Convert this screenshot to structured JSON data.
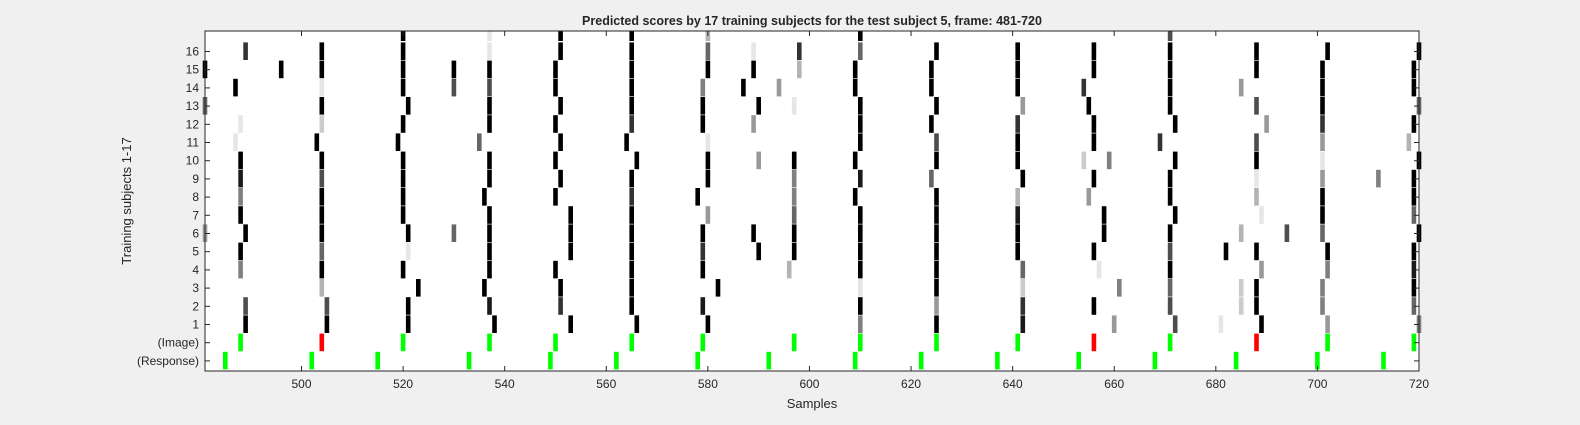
{
  "chart_data": {
    "type": "heatmap",
    "title": "Predicted scores by 17 training subjects for the test subject 5, frame: 481-720",
    "xlabel": "Samples",
    "ylabel": "Training subjects 1-17",
    "xlim": [
      481,
      720
    ],
    "x_ticks": [
      500,
      520,
      540,
      560,
      580,
      600,
      620,
      640,
      660,
      680,
      700,
      720
    ],
    "y_tick_labels": [
      "(Response)",
      "(Image)",
      "1",
      "2",
      "3",
      "4",
      "5",
      "6",
      "7",
      "8",
      "9",
      "10",
      "11",
      "12",
      "13",
      "14",
      "15",
      "16"
    ],
    "colors": {
      "background": "#ffffff",
      "frame": "#262626",
      "correct": "#00ff00",
      "incorrect": "#ff0000"
    },
    "rows": [
      {
        "label": "(Response)",
        "marks": [
          [
            485,
            "#00ff00"
          ],
          [
            502,
            "#00ff00"
          ],
          [
            515,
            "#00ff00"
          ],
          [
            533,
            "#00ff00"
          ],
          [
            549,
            "#00ff00"
          ],
          [
            562,
            "#00ff00"
          ],
          [
            578,
            "#00ff00"
          ],
          [
            592,
            "#00ff00"
          ],
          [
            609,
            "#00ff00"
          ],
          [
            622,
            "#00ff00"
          ],
          [
            637,
            "#00ff00"
          ],
          [
            653,
            "#00ff00"
          ],
          [
            668,
            "#00ff00"
          ],
          [
            684,
            "#00ff00"
          ],
          [
            700,
            "#00ff00"
          ],
          [
            713,
            "#00ff00"
          ]
        ]
      },
      {
        "label": "(Image)",
        "marks": [
          [
            488,
            "#00ff00"
          ],
          [
            504,
            "#ff0000"
          ],
          [
            520,
            "#00ff00"
          ],
          [
            537,
            "#00ff00"
          ],
          [
            550,
            "#00ff00"
          ],
          [
            565,
            "#00ff00"
          ],
          [
            579,
            "#00ff00"
          ],
          [
            597,
            "#00ff00"
          ],
          [
            610,
            "#00ff00"
          ],
          [
            625,
            "#00ff00"
          ],
          [
            641,
            "#00ff00"
          ],
          [
            656,
            "#ff0000"
          ],
          [
            671,
            "#00ff00"
          ],
          [
            688,
            "#ff0000"
          ],
          [
            702,
            "#00ff00"
          ],
          [
            719,
            "#00ff00"
          ]
        ]
      },
      {
        "label": "1",
        "marks": [
          [
            489,
            0
          ],
          [
            505,
            0
          ],
          [
            521,
            0
          ],
          [
            538,
            0
          ],
          [
            553,
            0
          ],
          [
            566,
            0
          ],
          [
            580,
            0
          ],
          [
            610,
            0.5
          ],
          [
            625,
            0
          ],
          [
            642,
            0.1
          ],
          [
            660,
            0.6
          ],
          [
            672,
            0.3
          ],
          [
            681,
            0.9
          ],
          [
            689,
            0
          ],
          [
            702,
            0.6
          ],
          [
            720,
            0.5
          ]
        ]
      },
      {
        "label": "2",
        "marks": [
          [
            489,
            0.3
          ],
          [
            505,
            0.3
          ],
          [
            521,
            0
          ],
          [
            537,
            0.1
          ],
          [
            551,
            0.2
          ],
          [
            565,
            0
          ],
          [
            579,
            0.1
          ],
          [
            610,
            0
          ],
          [
            625,
            0.6
          ],
          [
            642,
            0.2
          ],
          [
            656,
            0
          ],
          [
            671,
            0.3
          ],
          [
            685,
            0.8
          ],
          [
            688,
            0
          ],
          [
            701,
            0.5
          ],
          [
            719,
            0.4
          ]
        ]
      },
      {
        "label": "3",
        "marks": [
          [
            504,
            0.7
          ],
          [
            523,
            0
          ],
          [
            536,
            0
          ],
          [
            551,
            0
          ],
          [
            565,
            0
          ],
          [
            582,
            0
          ],
          [
            610,
            0.9
          ],
          [
            625,
            0
          ],
          [
            642,
            0.8
          ],
          [
            661,
            0.5
          ],
          [
            671,
            0.4
          ],
          [
            685,
            0.8
          ],
          [
            688,
            0
          ],
          [
            701,
            0.5
          ],
          [
            719,
            0
          ]
        ]
      },
      {
        "label": "4",
        "marks": [
          [
            488,
            0.5
          ],
          [
            504,
            0
          ],
          [
            520,
            0
          ],
          [
            537,
            0
          ],
          [
            550,
            0
          ],
          [
            565,
            0
          ],
          [
            579,
            0
          ],
          [
            596,
            0.7
          ],
          [
            610,
            0
          ],
          [
            625,
            0
          ],
          [
            642,
            0.4
          ],
          [
            657,
            0.9
          ],
          [
            671,
            0
          ],
          [
            689,
            0.6
          ],
          [
            702,
            0.5
          ],
          [
            719,
            0.1
          ]
        ]
      },
      {
        "label": "5",
        "marks": [
          [
            488,
            0
          ],
          [
            504,
            0.4
          ],
          [
            521,
            0.9
          ],
          [
            537,
            0
          ],
          [
            553,
            0
          ],
          [
            565,
            0
          ],
          [
            579,
            0.2
          ],
          [
            590,
            0
          ],
          [
            597,
            0
          ],
          [
            610,
            0
          ],
          [
            625,
            0
          ],
          [
            641,
            0
          ],
          [
            656,
            0
          ],
          [
            671,
            0.3
          ],
          [
            682,
            0
          ],
          [
            688,
            0
          ],
          [
            702,
            0
          ],
          [
            719,
            0
          ]
        ]
      },
      {
        "label": "6",
        "marks": [
          [
            481,
            0.6
          ],
          [
            489,
            0
          ],
          [
            504,
            0
          ],
          [
            521,
            0
          ],
          [
            530,
            0.4
          ],
          [
            537,
            0
          ],
          [
            553,
            0
          ],
          [
            565,
            0
          ],
          [
            579,
            0
          ],
          [
            589,
            0
          ],
          [
            597,
            0
          ],
          [
            610,
            0
          ],
          [
            625,
            0
          ],
          [
            641,
            0
          ],
          [
            658,
            0
          ],
          [
            671,
            0
          ],
          [
            685,
            0.7
          ],
          [
            694,
            0.3
          ],
          [
            701,
            0.4
          ],
          [
            720,
            0
          ]
        ]
      },
      {
        "label": "7",
        "marks": [
          [
            488,
            0
          ],
          [
            504,
            0
          ],
          [
            520,
            0
          ],
          [
            537,
            0
          ],
          [
            553,
            0
          ],
          [
            565,
            0
          ],
          [
            580,
            0.6
          ],
          [
            597,
            0.4
          ],
          [
            610,
            0
          ],
          [
            625,
            0
          ],
          [
            641,
            0.1
          ],
          [
            658,
            0
          ],
          [
            672,
            0
          ],
          [
            689,
            0.9
          ],
          [
            701,
            0
          ],
          [
            719,
            0.4
          ]
        ]
      },
      {
        "label": "8",
        "marks": [
          [
            488,
            0.5
          ],
          [
            504,
            0
          ],
          [
            520,
            0
          ],
          [
            536,
            0
          ],
          [
            550,
            0
          ],
          [
            565,
            0.2
          ],
          [
            578,
            0
          ],
          [
            597,
            0.5
          ],
          [
            609,
            0
          ],
          [
            625,
            0
          ],
          [
            641,
            0.7
          ],
          [
            655,
            0.6
          ],
          [
            671,
            0
          ],
          [
            688,
            0.7
          ],
          [
            701,
            0
          ],
          [
            719,
            0
          ]
        ]
      },
      {
        "label": "9",
        "marks": [
          [
            488,
            0.1
          ],
          [
            504,
            0.3
          ],
          [
            520,
            0
          ],
          [
            537,
            0
          ],
          [
            551,
            0
          ],
          [
            565,
            0
          ],
          [
            580,
            0
          ],
          [
            597,
            0.5
          ],
          [
            610,
            0.1
          ],
          [
            624,
            0.4
          ],
          [
            642,
            0
          ],
          [
            656,
            0
          ],
          [
            671,
            0
          ],
          [
            688,
            0.9
          ],
          [
            701,
            0.6
          ],
          [
            712,
            0.5
          ],
          [
            719,
            0
          ]
        ]
      },
      {
        "label": "10",
        "marks": [
          [
            488,
            0
          ],
          [
            504,
            0
          ],
          [
            520,
            0
          ],
          [
            537,
            0
          ],
          [
            550,
            0
          ],
          [
            566,
            0
          ],
          [
            580,
            0
          ],
          [
            590,
            0.6
          ],
          [
            597,
            0
          ],
          [
            609,
            0
          ],
          [
            625,
            0
          ],
          [
            641,
            0
          ],
          [
            654,
            0.8
          ],
          [
            659,
            0.5
          ],
          [
            672,
            0
          ],
          [
            688,
            0
          ],
          [
            701,
            0.9
          ],
          [
            720,
            0
          ]
        ]
      },
      {
        "label": "11",
        "marks": [
          [
            487,
            0.9
          ],
          [
            503,
            0
          ],
          [
            519,
            0
          ],
          [
            535,
            0.4
          ],
          [
            551,
            0
          ],
          [
            564,
            0
          ],
          [
            580,
            0.9
          ],
          [
            610,
            0
          ],
          [
            625,
            0.3
          ],
          [
            641,
            0
          ],
          [
            656,
            0
          ],
          [
            669,
            0.2
          ],
          [
            688,
            0.3
          ],
          [
            701,
            0.6
          ],
          [
            718,
            0.7
          ]
        ]
      },
      {
        "label": "12",
        "marks": [
          [
            488,
            0.9
          ],
          [
            504,
            0.8
          ],
          [
            520,
            0
          ],
          [
            537,
            0
          ],
          [
            550,
            0
          ],
          [
            565,
            0.2
          ],
          [
            579,
            0
          ],
          [
            589,
            0.6
          ],
          [
            610,
            0
          ],
          [
            624,
            0
          ],
          [
            641,
            0.2
          ],
          [
            656,
            0
          ],
          [
            672,
            0
          ],
          [
            690,
            0.6
          ],
          [
            701,
            0.2
          ],
          [
            719,
            0
          ]
        ]
      },
      {
        "label": "13",
        "marks": [
          [
            481,
            0.4
          ],
          [
            504,
            0
          ],
          [
            521,
            0
          ],
          [
            537,
            0
          ],
          [
            551,
            0
          ],
          [
            565,
            0
          ],
          [
            579,
            0
          ],
          [
            590,
            0
          ],
          [
            597,
            0.9
          ],
          [
            610,
            0
          ],
          [
            625,
            0
          ],
          [
            642,
            0.6
          ],
          [
            655,
            0
          ],
          [
            671,
            0
          ],
          [
            688,
            0.3
          ],
          [
            701,
            0
          ],
          [
            720,
            0.4
          ]
        ]
      },
      {
        "label": "14",
        "marks": [
          [
            487,
            0
          ],
          [
            504,
            0.9
          ],
          [
            520,
            0
          ],
          [
            530,
            0.3
          ],
          [
            537,
            0.3
          ],
          [
            550,
            0
          ],
          [
            565,
            0
          ],
          [
            579,
            0.5
          ],
          [
            587,
            0
          ],
          [
            594,
            0.6
          ],
          [
            609,
            0
          ],
          [
            624,
            0
          ],
          [
            641,
            0
          ],
          [
            654,
            0.2
          ],
          [
            671,
            0
          ],
          [
            685,
            0.6
          ],
          [
            701,
            0
          ],
          [
            719,
            0
          ]
        ]
      },
      {
        "label": "15",
        "marks": [
          [
            481,
            0
          ],
          [
            496,
            0
          ],
          [
            504,
            0
          ],
          [
            520,
            0
          ],
          [
            530,
            0
          ],
          [
            537,
            0
          ],
          [
            550,
            0
          ],
          [
            565,
            0
          ],
          [
            580,
            0
          ],
          [
            589,
            0
          ],
          [
            598,
            0.7
          ],
          [
            609,
            0
          ],
          [
            624,
            0
          ],
          [
            641,
            0
          ],
          [
            656,
            0
          ],
          [
            671,
            0
          ],
          [
            688,
            0
          ],
          [
            701,
            0
          ],
          [
            719,
            0
          ]
        ]
      },
      {
        "label": "16",
        "marks": [
          [
            489,
            0.2
          ],
          [
            504,
            0
          ],
          [
            520,
            0
          ],
          [
            537,
            0.9
          ],
          [
            551,
            0
          ],
          [
            565,
            0
          ],
          [
            580,
            0.4
          ],
          [
            589,
            0.9
          ],
          [
            598,
            0.2
          ],
          [
            610,
            0.4
          ],
          [
            625,
            0
          ],
          [
            641,
            0
          ],
          [
            656,
            0
          ],
          [
            671,
            0
          ],
          [
            688,
            0
          ],
          [
            702,
            0
          ],
          [
            720,
            0
          ]
        ]
      }
    ],
    "top_strip": [
      [
        520,
        0
      ],
      [
        537,
        0.9
      ],
      [
        551,
        0
      ],
      [
        565,
        0
      ],
      [
        580,
        0.7
      ],
      [
        610,
        0
      ],
      [
        671,
        0.3
      ]
    ]
  }
}
